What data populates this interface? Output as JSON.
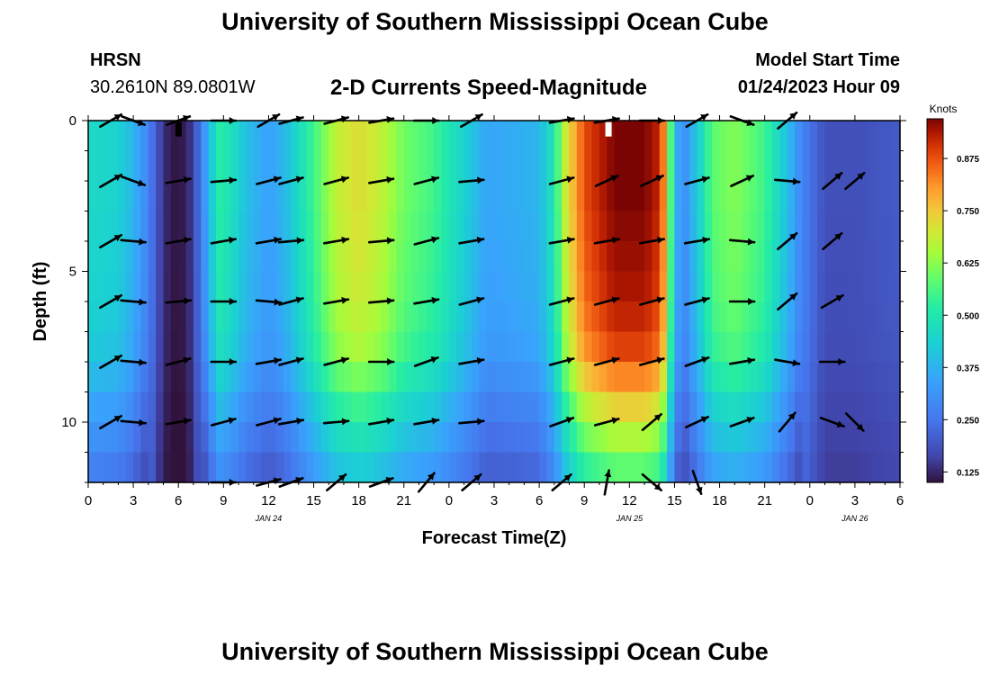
{
  "header": {
    "title": "University of Southern Mississippi Ocean Cube",
    "station_code": "HRSN",
    "coordinates": "30.2610N  89.0801W",
    "subtitle": "2-D Currents Speed-Magnitude",
    "model_label": "Model Start Time",
    "model_time": "01/24/2023 Hour 09"
  },
  "footer": {
    "title": "University of Southern Mississippi Ocean Cube"
  },
  "chart_data": {
    "type": "heatmap",
    "title": "2-D Currents Speed-Magnitude",
    "xlabel": "Forecast Time(Z)",
    "ylabel": "Depth (ft)",
    "xlim": [
      0,
      54
    ],
    "ylim": [
      0,
      12
    ],
    "y_reversed": true,
    "x_tick_labels": [
      "0",
      "3",
      "6",
      "9",
      "12",
      "15",
      "18",
      "21",
      "0",
      "3",
      "6",
      "9",
      "12",
      "15",
      "18",
      "21",
      "0",
      "3",
      "6"
    ],
    "date_labels": [
      {
        "x": 12,
        "text": "JAN 24"
      },
      {
        "x": 36,
        "text": "JAN 25"
      },
      {
        "x": 51,
        "text": "JAN 26"
      }
    ],
    "y_tick_labels": [
      {
        "y": 0,
        "text": "0"
      },
      {
        "y": 5,
        "text": "5"
      },
      {
        "y": 10,
        "text": "10"
      }
    ],
    "colorbar": {
      "unit": "Knots",
      "min": 0.1,
      "max": 0.97,
      "ticks": [
        "0.125",
        "0.250",
        "0.375",
        "0.500",
        "0.625",
        "0.750",
        "0.875"
      ],
      "tick_values": [
        0.125,
        0.25,
        0.375,
        0.5,
        0.625,
        0.75,
        0.875
      ]
    },
    "speed_profile_knots": [
      {
        "x": 0,
        "v": 0.46
      },
      {
        "x": 2,
        "v": 0.44
      },
      {
        "x": 3,
        "v": 0.38
      },
      {
        "x": 4,
        "v": 0.28
      },
      {
        "x": 4.7,
        "v": 0.17
      },
      {
        "x": 5.3,
        "v": 0.12
      },
      {
        "x": 6,
        "v": 0.1
      },
      {
        "x": 6.7,
        "v": 0.13
      },
      {
        "x": 7.3,
        "v": 0.22
      },
      {
        "x": 8,
        "v": 0.38
      },
      {
        "x": 8.7,
        "v": 0.52
      },
      {
        "x": 9.5,
        "v": 0.48
      },
      {
        "x": 10.5,
        "v": 0.4
      },
      {
        "x": 12,
        "v": 0.34
      },
      {
        "x": 13,
        "v": 0.38
      },
      {
        "x": 15,
        "v": 0.55
      },
      {
        "x": 16.5,
        "v": 0.68
      },
      {
        "x": 18,
        "v": 0.72
      },
      {
        "x": 19.5,
        "v": 0.68
      },
      {
        "x": 21,
        "v": 0.6
      },
      {
        "x": 23,
        "v": 0.55
      },
      {
        "x": 25,
        "v": 0.44
      },
      {
        "x": 26.5,
        "v": 0.35
      },
      {
        "x": 28,
        "v": 0.36
      },
      {
        "x": 30,
        "v": 0.38
      },
      {
        "x": 31,
        "v": 0.5
      },
      {
        "x": 31.8,
        "v": 0.7
      },
      {
        "x": 33,
        "v": 0.88
      },
      {
        "x": 35,
        "v": 0.97
      },
      {
        "x": 37,
        "v": 0.97
      },
      {
        "x": 38,
        "v": 0.92
      },
      {
        "x": 38.5,
        "v": 0.75
      },
      {
        "x": 38.9,
        "v": 0.45
      },
      {
        "x": 39.5,
        "v": 0.28
      },
      {
        "x": 40.5,
        "v": 0.42
      },
      {
        "x": 41.5,
        "v": 0.58
      },
      {
        "x": 43,
        "v": 0.62
      },
      {
        "x": 45,
        "v": 0.55
      },
      {
        "x": 46.5,
        "v": 0.4
      },
      {
        "x": 47.5,
        "v": 0.28
      },
      {
        "x": 49,
        "v": 0.18
      },
      {
        "x": 51,
        "v": 0.18
      },
      {
        "x": 54,
        "v": 0.2
      }
    ],
    "depth_rows": [
      0.5,
      1.5,
      2.5,
      3.5,
      4.5,
      5.5,
      6.5,
      7.5,
      8.5,
      9.5,
      10.5,
      11.5
    ],
    "depth_factor": [
      1.0,
      1.0,
      1.0,
      0.99,
      0.98,
      0.97,
      0.95,
      0.92,
      0.85,
      0.76,
      0.68,
      0.6
    ],
    "vector_depths": [
      0,
      2,
      4,
      6,
      8,
      10,
      12
    ],
    "vector_times": [
      1.5,
      3,
      6,
      9,
      12,
      13.5,
      16.5,
      19.5,
      22.5,
      25.5,
      31.5,
      34.5,
      37.5,
      40.5,
      43.5,
      46.5,
      49.5,
      51,
      54
    ],
    "vector_directions_deg": [
      [
        -30,
        20,
        -20,
        0,
        -30,
        -15,
        -15,
        -10,
        0,
        -30,
        -10,
        -10,
        0,
        -30,
        20,
        -40
      ],
      [
        -30,
        20,
        -10,
        -5,
        -15,
        -15,
        -15,
        -10,
        -15,
        -5,
        -15,
        -25,
        -25,
        -15,
        -25,
        5,
        -40,
        -40
      ],
      [
        -30,
        5,
        -10,
        -10,
        -10,
        -5,
        -10,
        -5,
        -15,
        -10,
        -10,
        -10,
        -10,
        -10,
        5,
        -40,
        -40
      ],
      [
        -30,
        5,
        -5,
        0,
        5,
        -15,
        -10,
        -5,
        -10,
        -15,
        -15,
        -15,
        -15,
        -15,
        0,
        -40,
        -30
      ],
      [
        -30,
        5,
        -15,
        0,
        -10,
        -15,
        -15,
        0,
        -20,
        -10,
        -15,
        -15,
        -15,
        -20,
        -10,
        10,
        0
      ],
      [
        -30,
        5,
        -10,
        -15,
        -15,
        -10,
        -5,
        -10,
        -10,
        -5,
        -20,
        -15,
        -40,
        -25,
        -20,
        -50,
        20,
        45
      ],
      [
        0,
        -15,
        -20,
        -40,
        -20,
        -50,
        -40,
        -40,
        -80,
        40,
        70
      ]
    ]
  }
}
